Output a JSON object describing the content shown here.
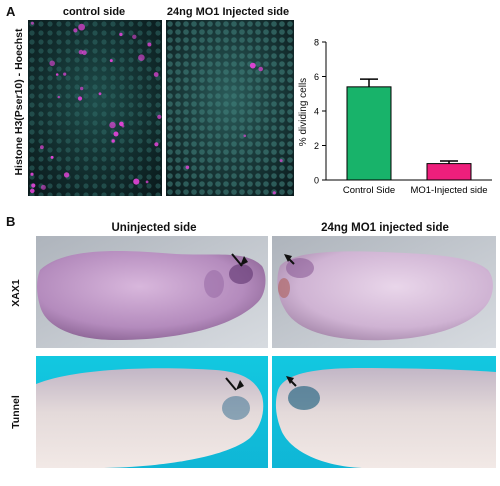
{
  "panel_a": {
    "letter": "A",
    "ylabel": "Histone H3(Pser10) - Hoechst",
    "col_left": "control side",
    "col_right": "24ng MO1 Injected side"
  },
  "panel_b": {
    "letter": "B",
    "col_left": "Uninjected side",
    "col_right": "24ng MO1 injected side",
    "row_top": "XAX1",
    "row_bottom": "Tunnel"
  },
  "chart_data": {
    "type": "bar",
    "categories": [
      "Control Side",
      "MO1-Injected side"
    ],
    "values": [
      5.4,
      0.95
    ],
    "errors": [
      0.45,
      0.15
    ],
    "colors": [
      "#18b36a",
      "#ee1f7c"
    ],
    "ylabel": "% dividing cells",
    "ylim": [
      0,
      8
    ],
    "yticks": [
      "0",
      "2",
      "4",
      "6",
      "8"
    ]
  }
}
